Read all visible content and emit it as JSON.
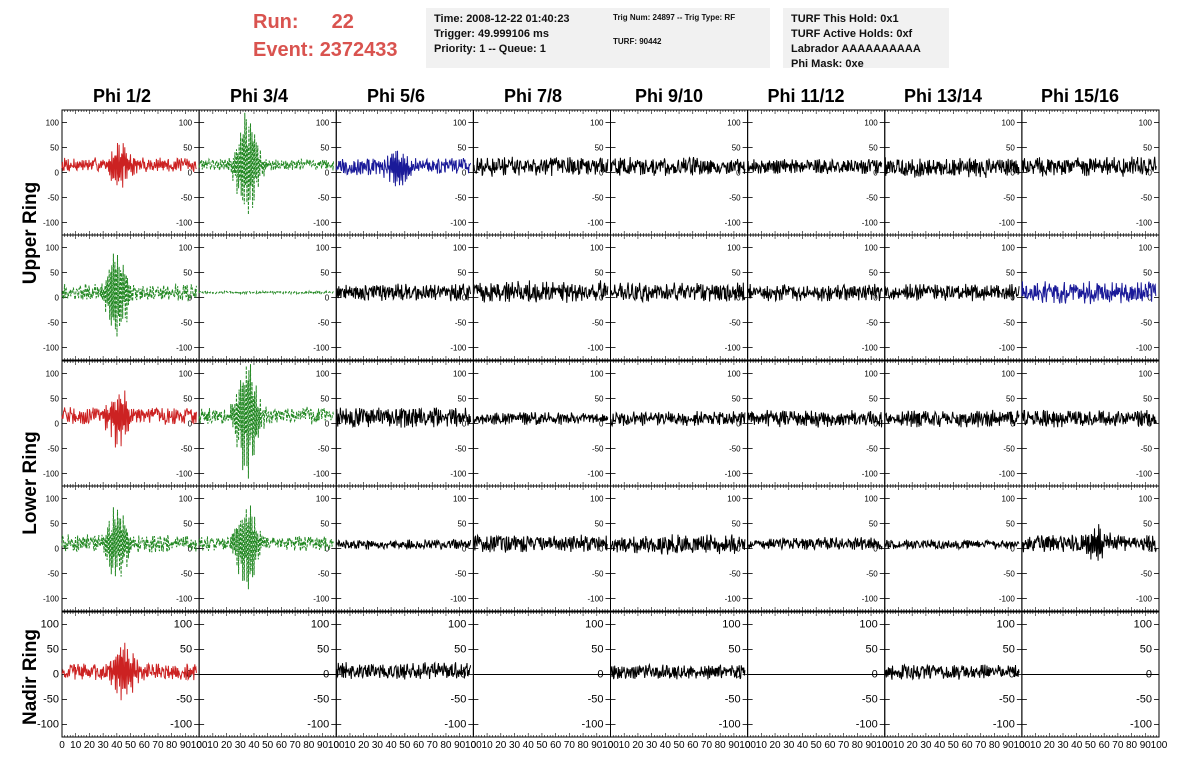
{
  "header": {
    "run_label": "Run:",
    "run_value": "22",
    "event_label": "Event:",
    "event_value": "2372433",
    "time_box": {
      "time": "Time: 2008-12-22 01:40:23",
      "trigger": "Trigger: 49.999106 ms",
      "priority": "Priority: 1 -- Queue: 1"
    },
    "trig_box": {
      "trig": "Trig Num: 24897 -- Trig Type: RF",
      "turf": "TURF: 90442"
    },
    "turf_box": {
      "hold": "TURF This Hold: 0x1",
      "active": "TURF Active Holds: 0xf",
      "labrador": "Labrador AAAAAAAAAA",
      "phimask": "Phi Mask: 0xe"
    }
  },
  "chart_data": {
    "type": "line",
    "columns": [
      "Phi 1/2",
      "Phi 3/4",
      "Phi 5/6",
      "Phi 7/8",
      "Phi 9/10",
      "Phi 11/12",
      "Phi 13/14",
      "Phi 15/16"
    ],
    "rows": [
      "Upper Ring",
      "Upper Ring",
      "Lower Ring",
      "Lower Ring",
      "Nadir Ring"
    ],
    "row_labels": [
      {
        "label": "Upper Ring",
        "rows": [
          0,
          1
        ]
      },
      {
        "label": "Lower Ring",
        "rows": [
          2,
          3
        ]
      },
      {
        "label": "Nadir Ring",
        "rows": [
          4
        ]
      }
    ],
    "xlim": [
      0,
      100
    ],
    "ylim": [
      -125,
      125
    ],
    "yticks": [
      -100,
      -50,
      0,
      50,
      100
    ],
    "xticks": [
      0,
      10,
      20,
      30,
      40,
      50,
      60,
      70,
      80,
      90,
      100
    ],
    "colors": {
      "red": "#cc2222",
      "green": "#228822",
      "blue": "#1a1a99",
      "black": "#000000"
    },
    "panels": [
      [
        {
          "color": "red",
          "dash": false,
          "amp": 12,
          "offset": 15,
          "burst": 45,
          "burst_center": 42
        },
        {
          "color": "green",
          "dash": true,
          "amp": 10,
          "offset": 15,
          "burst": 110,
          "burst_center": 35
        },
        {
          "color": "blue",
          "dash": false,
          "amp": 14,
          "offset": 12,
          "burst": 35,
          "burst_center": 45
        },
        {
          "color": "black",
          "dash": false,
          "amp": 16,
          "offset": 12,
          "burst": 0,
          "burst_center": 50
        },
        {
          "color": "black",
          "dash": false,
          "amp": 15,
          "offset": 12,
          "burst": 0,
          "burst_center": 50
        },
        {
          "color": "black",
          "dash": false,
          "amp": 12,
          "offset": 12,
          "burst": 0,
          "burst_center": 50
        },
        {
          "color": "black",
          "dash": false,
          "amp": 16,
          "offset": 10,
          "burst": 0,
          "burst_center": 50
        },
        {
          "color": "black",
          "dash": false,
          "amp": 16,
          "offset": 12,
          "burst": 0,
          "burst_center": 50
        }
      ],
      [
        {
          "color": "green",
          "dash": true,
          "amp": 14,
          "offset": 10,
          "burst": 95,
          "burst_center": 40
        },
        {
          "color": "green",
          "dash": true,
          "amp": 2,
          "offset": 10,
          "burst": 0,
          "burst_center": 50
        },
        {
          "color": "black",
          "dash": false,
          "amp": 14,
          "offset": 10,
          "burst": 0,
          "burst_center": 50
        },
        {
          "color": "black",
          "dash": false,
          "amp": 18,
          "offset": 12,
          "burst": 0,
          "burst_center": 50
        },
        {
          "color": "black",
          "dash": false,
          "amp": 16,
          "offset": 10,
          "burst": 0,
          "burst_center": 50
        },
        {
          "color": "black",
          "dash": false,
          "amp": 14,
          "offset": 10,
          "burst": 0,
          "burst_center": 50
        },
        {
          "color": "black",
          "dash": false,
          "amp": 14,
          "offset": 10,
          "burst": 0,
          "burst_center": 50
        },
        {
          "color": "blue",
          "dash": false,
          "amp": 18,
          "offset": 10,
          "burst": 0,
          "burst_center": 50
        }
      ],
      [
        {
          "color": "red",
          "dash": false,
          "amp": 14,
          "offset": 15,
          "burst": 55,
          "burst_center": 42
        },
        {
          "color": "green",
          "dash": true,
          "amp": 14,
          "offset": 15,
          "burst": 120,
          "burst_center": 35
        },
        {
          "color": "black",
          "dash": false,
          "amp": 16,
          "offset": 12,
          "burst": 0,
          "burst_center": 50
        },
        {
          "color": "black",
          "dash": false,
          "amp": 10,
          "offset": 10,
          "burst": 0,
          "burst_center": 50
        },
        {
          "color": "black",
          "dash": false,
          "amp": 12,
          "offset": 10,
          "burst": 0,
          "burst_center": 50
        },
        {
          "color": "black",
          "dash": false,
          "amp": 14,
          "offset": 10,
          "burst": 0,
          "burst_center": 50
        },
        {
          "color": "black",
          "dash": false,
          "amp": 14,
          "offset": 10,
          "burst": 0,
          "burst_center": 50
        },
        {
          "color": "black",
          "dash": false,
          "amp": 14,
          "offset": 10,
          "burst": 0,
          "burst_center": 50
        }
      ],
      [
        {
          "color": "green",
          "dash": true,
          "amp": 14,
          "offset": 10,
          "burst": 75,
          "burst_center": 40
        },
        {
          "color": "green",
          "dash": true,
          "amp": 12,
          "offset": 10,
          "burst": 95,
          "burst_center": 35
        },
        {
          "color": "black",
          "dash": false,
          "amp": 8,
          "offset": 8,
          "burst": 0,
          "burst_center": 50
        },
        {
          "color": "black",
          "dash": false,
          "amp": 14,
          "offset": 10,
          "burst": 0,
          "burst_center": 50
        },
        {
          "color": "black",
          "dash": false,
          "amp": 16,
          "offset": 8,
          "burst": 0,
          "burst_center": 50
        },
        {
          "color": "black",
          "dash": false,
          "amp": 10,
          "offset": 10,
          "burst": 0,
          "burst_center": 50
        },
        {
          "color": "black",
          "dash": false,
          "amp": 8,
          "offset": 8,
          "burst": 0,
          "burst_center": 50
        },
        {
          "color": "black",
          "dash": false,
          "amp": 14,
          "offset": 10,
          "burst": 30,
          "burst_center": 55
        }
      ],
      [
        {
          "color": "red",
          "dash": false,
          "amp": 14,
          "offset": 5,
          "burst": 60,
          "burst_center": 45
        },
        {
          "color": "black",
          "dash": false,
          "amp": 0,
          "offset": 0,
          "burst": 0,
          "burst_center": 50
        },
        {
          "color": "black",
          "dash": false,
          "amp": 14,
          "offset": 8,
          "burst": 0,
          "burst_center": 50
        },
        {
          "color": "black",
          "dash": false,
          "amp": 0,
          "offset": 0,
          "burst": 0,
          "burst_center": 50
        },
        {
          "color": "black",
          "dash": false,
          "amp": 12,
          "offset": 5,
          "burst": 0,
          "burst_center": 50
        },
        {
          "color": "black",
          "dash": false,
          "amp": 0,
          "offset": 0,
          "burst": 0,
          "burst_center": 50
        },
        {
          "color": "black",
          "dash": false,
          "amp": 12,
          "offset": 5,
          "burst": 0,
          "burst_center": 50
        },
        {
          "color": "black",
          "dash": false,
          "amp": 0,
          "offset": 0,
          "burst": 0,
          "burst_center": 50
        }
      ]
    ]
  }
}
